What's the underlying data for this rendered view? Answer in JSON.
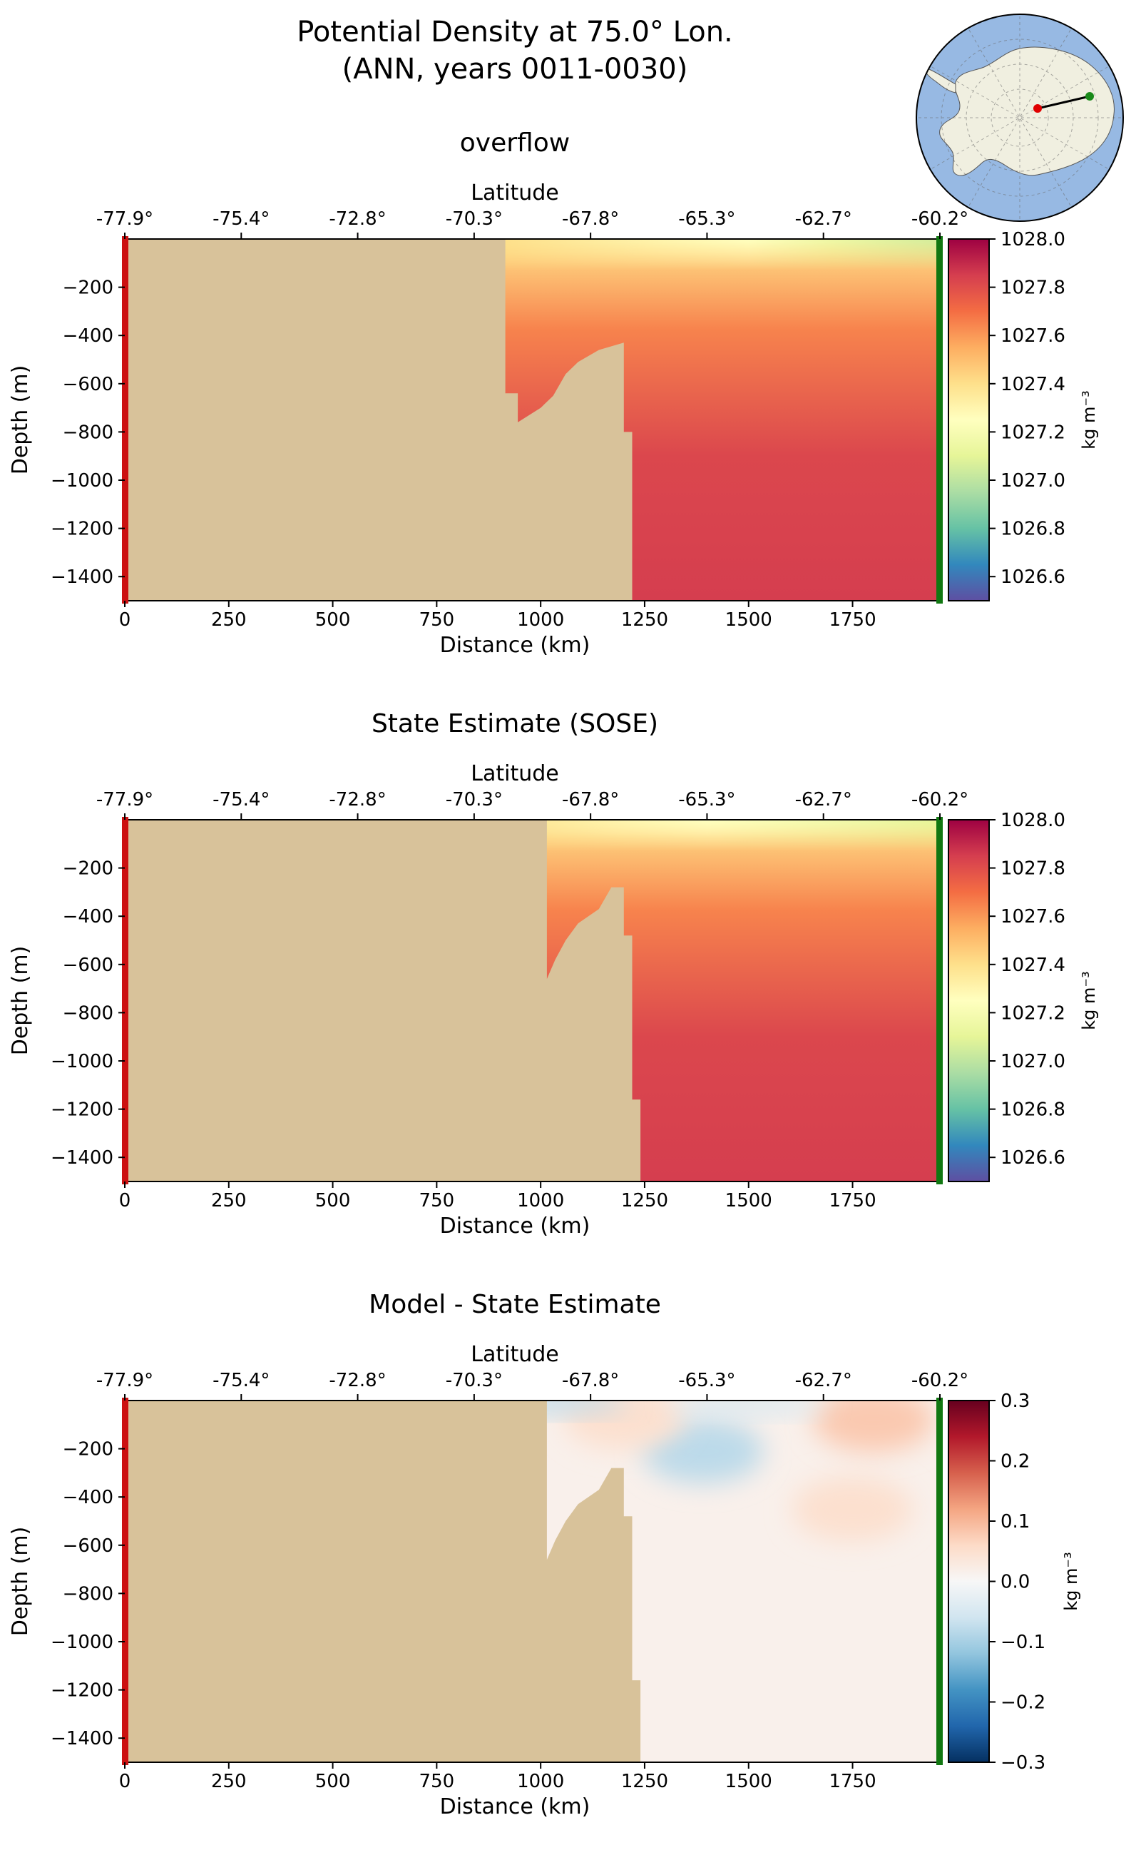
{
  "figure": {
    "title_line1": "Potential Density at 75.0° Lon.",
    "title_line2": "(ANN, years 0011-0030)"
  },
  "colors": {
    "land": "#d8c29a",
    "south_marker": "#cc1111",
    "north_marker": "#117711",
    "ocean_map": "#97b9e3",
    "antarctica": "#f0efe0"
  },
  "chart_data": [
    {
      "type": "heatmap",
      "title": "overflow",
      "xlabel": "Distance (km)",
      "ylabel": "Depth (m)",
      "top_xlabel": "Latitude",
      "xlim": [
        0,
        1960
      ],
      "ylim": [
        -1500,
        0
      ],
      "xticks": [
        0,
        250,
        500,
        750,
        1000,
        1250,
        1500,
        1750
      ],
      "yticks": [
        -200,
        -400,
        -600,
        -800,
        -1000,
        -1200,
        -1400
      ],
      "top_ticks": [
        "-77.9°",
        "-75.4°",
        "-72.8°",
        "-70.3°",
        "-67.8°",
        "-65.3°",
        "-62.7°",
        "-60.2°"
      ],
      "colorbar": {
        "label": "kg m⁻³",
        "range": [
          1026.5,
          1028.0
        ],
        "ticks": [
          1026.6,
          1026.8,
          1027.0,
          1027.2,
          1027.4,
          1027.6,
          1027.8,
          1028.0
        ],
        "colormap": "Spectral_r"
      },
      "land_boundary": [
        [
          0,
          0
        ],
        [
          915,
          0
        ],
        [
          915,
          -640
        ],
        [
          945,
          -640
        ],
        [
          945,
          -760
        ],
        [
          1000,
          -700
        ],
        [
          1030,
          -650
        ],
        [
          1060,
          -560
        ],
        [
          1090,
          -510
        ],
        [
          1140,
          -460
        ],
        [
          1200,
          -430
        ],
        [
          1200,
          -800
        ],
        [
          1220,
          -800
        ],
        [
          1220,
          -1500
        ],
        [
          0,
          -1500
        ]
      ],
      "shelf_level": 1027.6,
      "surface_values": {
        "x": [
          920,
          1100,
          1300,
          1500,
          1700,
          1960
        ],
        "values": [
          1027.4,
          1027.35,
          1027.3,
          1027.25,
          1027.15,
          1027.05
        ]
      },
      "deep_value": 1027.85
    },
    {
      "type": "heatmap",
      "title": "State Estimate (SOSE)",
      "xlabel": "Distance (km)",
      "ylabel": "Depth (m)",
      "top_xlabel": "Latitude",
      "xlim": [
        0,
        1960
      ],
      "ylim": [
        -1500,
        0
      ],
      "xticks": [
        0,
        250,
        500,
        750,
        1000,
        1250,
        1500,
        1750
      ],
      "yticks": [
        -200,
        -400,
        -600,
        -800,
        -1000,
        -1200,
        -1400
      ],
      "top_ticks": [
        "-77.9°",
        "-75.4°",
        "-72.8°",
        "-70.3°",
        "-67.8°",
        "-65.3°",
        "-62.7°",
        "-60.2°"
      ],
      "colorbar": {
        "label": "kg m⁻³",
        "range": [
          1026.5,
          1028.0
        ],
        "ticks": [
          1026.6,
          1026.8,
          1027.0,
          1027.2,
          1027.4,
          1027.6,
          1027.8,
          1028.0
        ],
        "colormap": "Spectral_r"
      },
      "land_boundary": [
        [
          0,
          0
        ],
        [
          1015,
          0
        ],
        [
          1015,
          -660
        ],
        [
          1035,
          -580
        ],
        [
          1060,
          -500
        ],
        [
          1090,
          -430
        ],
        [
          1140,
          -370
        ],
        [
          1170,
          -280
        ],
        [
          1200,
          -280
        ],
        [
          1200,
          -480
        ],
        [
          1220,
          -480
        ],
        [
          1220,
          -1160
        ],
        [
          1240,
          -1160
        ],
        [
          1240,
          -1500
        ],
        [
          0,
          -1500
        ]
      ],
      "shelf_level": 1027.6,
      "surface_values": {
        "x": [
          1015,
          1200,
          1400,
          1600,
          1800,
          1960
        ],
        "values": [
          1027.35,
          1027.3,
          1027.25,
          1027.2,
          1027.15,
          1027.1
        ]
      },
      "deep_value": 1027.85
    },
    {
      "type": "heatmap",
      "title": "Model - State Estimate",
      "xlabel": "Distance (km)",
      "ylabel": "Depth (m)",
      "top_xlabel": "Latitude",
      "xlim": [
        0,
        1960
      ],
      "ylim": [
        -1500,
        0
      ],
      "xticks": [
        0,
        250,
        500,
        750,
        1000,
        1250,
        1500,
        1750
      ],
      "yticks": [
        -200,
        -400,
        -600,
        -800,
        -1000,
        -1200,
        -1400
      ],
      "top_ticks": [
        "-77.9°",
        "-75.4°",
        "-72.8°",
        "-70.3°",
        "-67.8°",
        "-65.3°",
        "-62.7°",
        "-60.2°"
      ],
      "colorbar": {
        "label": "kg m⁻³",
        "range": [
          -0.3,
          0.3
        ],
        "ticks": [
          0.3,
          0.2,
          0.1,
          0.0,
          -0.1,
          -0.2,
          -0.3
        ],
        "colormap": "RdBu_r"
      },
      "land_boundary": [
        [
          0,
          0
        ],
        [
          1015,
          0
        ],
        [
          1015,
          -660
        ],
        [
          1035,
          -580
        ],
        [
          1060,
          -500
        ],
        [
          1090,
          -430
        ],
        [
          1140,
          -370
        ],
        [
          1170,
          -280
        ],
        [
          1200,
          -280
        ],
        [
          1200,
          -480
        ],
        [
          1220,
          -480
        ],
        [
          1220,
          -1160
        ],
        [
          1240,
          -1160
        ],
        [
          1240,
          -1500
        ],
        [
          0,
          -1500
        ]
      ],
      "anomalies": [
        {
          "x": 1390,
          "depth": -210,
          "value": -0.08
        },
        {
          "x": 1200,
          "depth": -70,
          "value": 0.05
        },
        {
          "x": 1750,
          "depth": -450,
          "value": 0.05
        },
        {
          "x": 1800,
          "depth": -80,
          "value": 0.08
        },
        {
          "x": 1020,
          "depth": -10,
          "value": -0.08
        },
        {
          "x": 1500,
          "depth": -15,
          "value": -0.05
        }
      ]
    }
  ],
  "inset_map": {
    "projection": "south-polar stereographic",
    "section_start": {
      "lat": -77.9,
      "lon": 75.0,
      "color": "#e00000"
    },
    "section_end": {
      "lat": -60.2,
      "lon": 75.0,
      "color": "#1a8a1a"
    }
  }
}
